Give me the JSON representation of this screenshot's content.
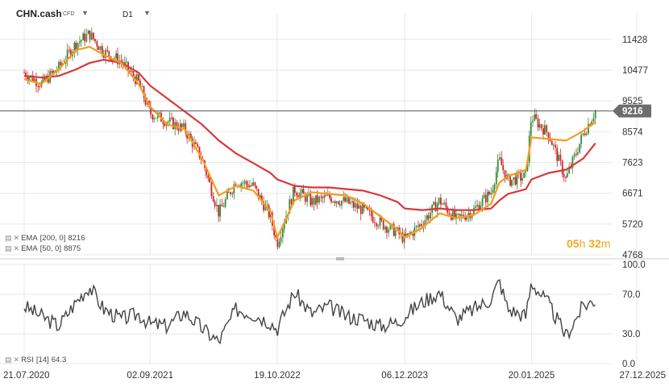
{
  "header": {
    "symbol": "CHN.cash",
    "instrument_type": "CFD",
    "timeframe": "D1"
  },
  "countdown": {
    "hours": "05",
    "h_unit": "h",
    "minutes": "32",
    "m_unit": "m"
  },
  "price_panel": {
    "legend": [
      {
        "label": "EMA",
        "params": "[200, 0]",
        "value": "8216",
        "color": "#d9383a"
      },
      {
        "label": "EMA",
        "params": "[50, 0]",
        "value": "8875",
        "color": "#f59c1a"
      }
    ],
    "current_price_label": "9216",
    "y_tick_labels": [
      "11428",
      "10477",
      "9525",
      "8574",
      "7623",
      "6671",
      "5720",
      "4768"
    ]
  },
  "rsi_panel": {
    "legend": {
      "label": "RSI",
      "params": "[14]",
      "value": "64.3"
    },
    "y_tick_labels": [
      "100.0",
      "70.0",
      "30.0",
      "0.0"
    ]
  },
  "x_tick_labels": [
    "21.07.2020",
    "02.09.2021",
    "19.10.2022",
    "06.12.2023",
    "20.01.2025",
    "27.12.2025"
  ],
  "colors": {
    "bull": "#3a8a3a",
    "bear": "#d2232a",
    "ema200": "#d9383a",
    "ema50": "#f59c1a",
    "rsi": "#444444",
    "price_line": "#555555",
    "price_tag": "#6d6d6d",
    "grid": "#e8e8e8"
  },
  "chart_data": [
    {
      "type": "candlestick",
      "title": "CHN.cash D1",
      "x": [
        "2020-07-21",
        "2020-09-15",
        "2020-11-10",
        "2021-01-05",
        "2021-02-18",
        "2021-04-05",
        "2021-06-01",
        "2021-07-27",
        "2021-09-02",
        "2021-10-28",
        "2021-12-23",
        "2022-02-17",
        "2022-04-13",
        "2022-06-08",
        "2022-08-03",
        "2022-09-27",
        "2022-10-19",
        "2022-12-14",
        "2023-02-08",
        "2023-04-04",
        "2023-05-30",
        "2023-07-25",
        "2023-09-19",
        "2023-11-13",
        "2023-12-06",
        "2024-02-01",
        "2024-03-28",
        "2024-05-22",
        "2024-07-17",
        "2024-09-11",
        "2024-10-08",
        "2024-11-05",
        "2025-01-02",
        "2025-01-20",
        "2025-03-17",
        "2025-05-12",
        "2025-07-07",
        "2025-08-15"
      ],
      "series": [
        {
          "name": "Close",
          "values": [
            10400,
            10050,
            10550,
            11300,
            11600,
            11050,
            10750,
            10100,
            9150,
            8900,
            8650,
            7750,
            6050,
            7050,
            6900,
            5950,
            5120,
            6800,
            6400,
            6550,
            6400,
            6150,
            5750,
            5450,
            5250,
            5750,
            6450,
            5850,
            6150,
            6700,
            7700,
            7050,
            7200,
            9050,
            8500,
            7100,
            8500,
            9216
          ]
        },
        {
          "name": "EMA [200, 0]",
          "values": [
            10300,
            10250,
            10300,
            10500,
            10700,
            10800,
            10700,
            10400,
            10000,
            9600,
            9200,
            8800,
            8300,
            7900,
            7600,
            7300,
            7100,
            6900,
            6850,
            6850,
            6800,
            6750,
            6600,
            6400,
            6200,
            6150,
            6200,
            6150,
            6150,
            6200,
            6450,
            6650,
            6800,
            7100,
            7300,
            7400,
            7750,
            8216
          ]
        },
        {
          "name": "EMA [50, 0]",
          "values": [
            10200,
            10050,
            10500,
            11100,
            11200,
            10950,
            10700,
            10050,
            9350,
            8800,
            8650,
            7750,
            6600,
            6900,
            6750,
            6100,
            5300,
            6450,
            6700,
            6650,
            6600,
            6350,
            5950,
            5550,
            5300,
            5600,
            6050,
            5900,
            6000,
            6350,
            7000,
            7200,
            7400,
            8400,
            8350,
            8300,
            8600,
            8875
          ]
        }
      ],
      "ylim": [
        4768,
        12000
      ],
      "y_ticks": [
        11428,
        10477,
        9525,
        8574,
        7623,
        6671,
        5720,
        4768
      ],
      "current_price": 9216,
      "grid": true
    },
    {
      "type": "line",
      "title": "RSI [14]",
      "x": [
        "2020-07-21",
        "2020-09-15",
        "2020-11-10",
        "2021-01-05",
        "2021-02-18",
        "2021-04-05",
        "2021-06-01",
        "2021-07-27",
        "2021-09-02",
        "2021-10-28",
        "2021-12-23",
        "2022-02-17",
        "2022-04-13",
        "2022-06-08",
        "2022-08-03",
        "2022-09-27",
        "2022-10-19",
        "2022-12-14",
        "2023-02-08",
        "2023-04-04",
        "2023-05-30",
        "2023-07-25",
        "2023-09-19",
        "2023-11-13",
        "2023-12-06",
        "2024-02-01",
        "2024-03-28",
        "2024-05-22",
        "2024-07-17",
        "2024-09-11",
        "2024-10-08",
        "2024-11-05",
        "2025-01-02",
        "2025-01-20",
        "2025-03-17",
        "2025-05-12",
        "2025-07-07",
        "2025-08-15"
      ],
      "series": [
        {
          "name": "RSI [14]",
          "values": [
            58,
            48,
            38,
            62,
            78,
            55,
            45,
            50,
            40,
            38,
            52,
            36,
            22,
            55,
            50,
            42,
            35,
            72,
            50,
            58,
            48,
            45,
            38,
            42,
            48,
            62,
            72,
            45,
            55,
            65,
            84,
            55,
            48,
            82,
            60,
            28,
            58,
            64.3
          ]
        }
      ],
      "ylim": [
        0,
        100
      ],
      "y_ticks": [
        100,
        70,
        30,
        0
      ],
      "grid": true
    }
  ]
}
